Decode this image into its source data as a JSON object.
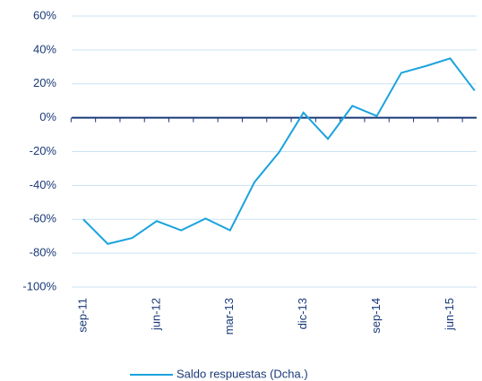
{
  "chart_data": {
    "type": "line",
    "categories": [
      "sep-11",
      null,
      null,
      "jun-12",
      null,
      null,
      "mar-13",
      null,
      null,
      "dic-13",
      null,
      null,
      "sep-14",
      null,
      null,
      "jun-15",
      null
    ],
    "series": [
      {
        "name": "Saldo respuestas (Dcha.)",
        "color": "#1aa3dd",
        "values": [
          -60,
          -74.5,
          -71,
          -61,
          -66.5,
          -59.5,
          -66.5,
          -38,
          -20.5,
          3,
          -12.5,
          7,
          1,
          26.5,
          30.5,
          35,
          16
        ]
      }
    ],
    "ylim": [
      -100,
      60
    ],
    "yticks": [
      {
        "value": -100,
        "label": "-100%"
      },
      {
        "value": -80,
        "label": "-80%"
      },
      {
        "value": -60,
        "label": "-60%"
      },
      {
        "value": -40,
        "label": "-40%"
      },
      {
        "value": -20,
        "label": "-20%"
      },
      {
        "value": 0,
        "label": "0%"
      },
      {
        "value": 20,
        "label": "20%"
      },
      {
        "value": 40,
        "label": "40%"
      },
      {
        "value": 60,
        "label": "60%"
      }
    ],
    "grid": true,
    "legend": "bottom"
  }
}
